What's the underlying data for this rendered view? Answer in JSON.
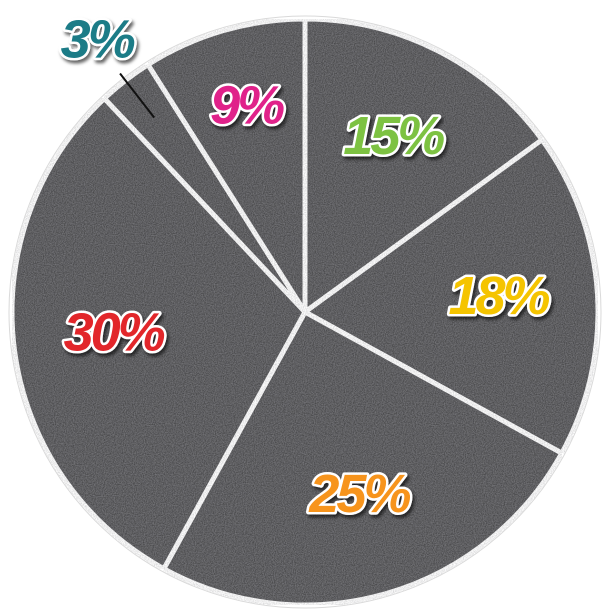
{
  "chart_data": {
    "type": "pie",
    "categories": [
      null,
      null,
      null,
      null,
      null,
      null
    ],
    "values": [
      15,
      18,
      25,
      30,
      3,
      9
    ],
    "value_labels": [
      "15%",
      "18%",
      "25%",
      "30%",
      "3%",
      "9%"
    ],
    "colors": [
      "#7dc242",
      "#f5c400",
      "#f7941d",
      "#e2262b",
      "#1b7b87",
      "#e0218a"
    ],
    "slice_color": "#4b4b4e",
    "start_angle": 0,
    "direction": "clockwise"
  }
}
